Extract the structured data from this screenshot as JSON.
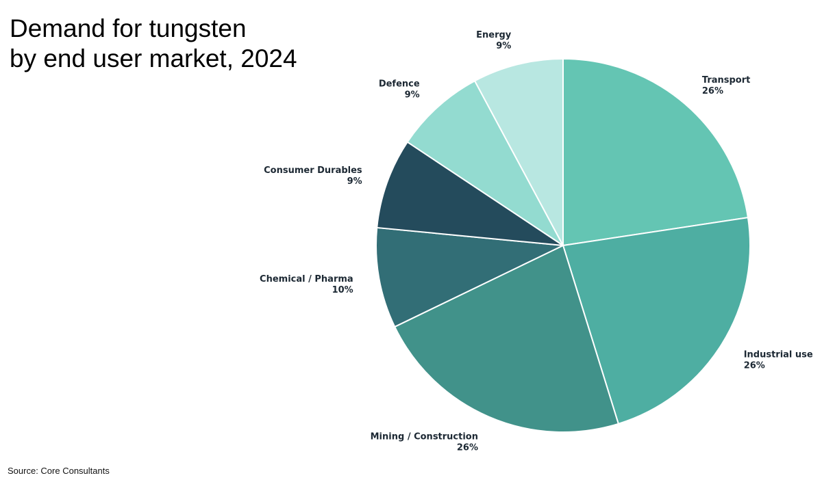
{
  "title": {
    "line1": "Demand for tungsten",
    "line2": "by end user market, 2024"
  },
  "source": "Source: Core Consultants",
  "chart_data": {
    "type": "pie",
    "slices": [
      {
        "label": "Transport",
        "value": 26,
        "value_label": "26%",
        "color": "#64c5b3"
      },
      {
        "label": "Industrial use",
        "value": 26,
        "value_label": "26%",
        "color": "#4eaea2"
      },
      {
        "label": "Mining / Construction",
        "value": 26,
        "value_label": "26%",
        "color": "#41928a"
      },
      {
        "label": "Chemical / Pharma",
        "value": 10,
        "value_label": "10%",
        "color": "#326e76"
      },
      {
        "label": "Consumer Durables",
        "value": 9,
        "value_label": "9%",
        "color": "#244b5c"
      },
      {
        "label": "Defence",
        "value": 9,
        "value_label": "9%",
        "color": "#93dbd0"
      },
      {
        "label": "Energy",
        "value": 9,
        "value_label": "9%",
        "color": "#b8e7e1"
      }
    ],
    "start": "12 o'clock",
    "direction": "clockwise",
    "legend": "none"
  }
}
